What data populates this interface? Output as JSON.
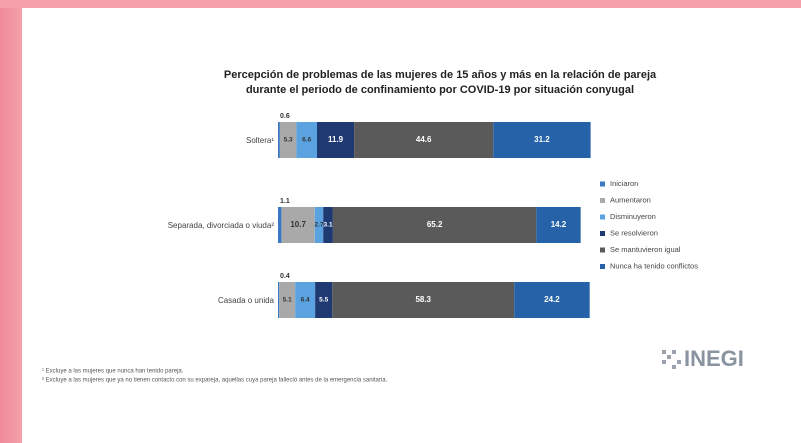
{
  "chart_data": {
    "type": "stacked-bar-horizontal",
    "title": [
      "Percepción de problemas de las mujeres de 15 años y más en la relación de pareja",
      "durante el periodo de confinamiento por COVID-19 por situación conyugal"
    ],
    "categories": [
      "Soltera¹",
      "Separada, divorciada o viuda²",
      "Casada o unida"
    ],
    "series": [
      {
        "name": "Iniciaron",
        "color": "#3b78c4",
        "values": [
          0.6,
          1.1,
          0.4
        ]
      },
      {
        "name": "Aumentaron",
        "color": "#a9a9a9",
        "values": [
          5.3,
          10.7,
          5.1
        ]
      },
      {
        "name": "Disminuyeron",
        "color": "#5ba3e0",
        "values": [
          6.6,
          2.7,
          6.4
        ]
      },
      {
        "name": "Se resolvieron",
        "color": "#1f3a73",
        "values": [
          11.9,
          3.1,
          5.5
        ]
      },
      {
        "name": "Se mantuvieron igual",
        "color": "#5a5a5a",
        "values": [
          44.6,
          65.2,
          58.3
        ]
      },
      {
        "name": "Nunca ha tenido conflictos",
        "color": "#2662a8",
        "values": [
          31.2,
          14.2,
          24.2
        ]
      }
    ],
    "footnotes": [
      "¹ Excluye a las mujeres que nunca han tenido pareja.",
      "² Excluye a las mujeres que ya no tienen contacto con su expareja, aquellas cuya pareja falleció antes de la emergencia sanitaria."
    ],
    "logo": "INEGI"
  }
}
